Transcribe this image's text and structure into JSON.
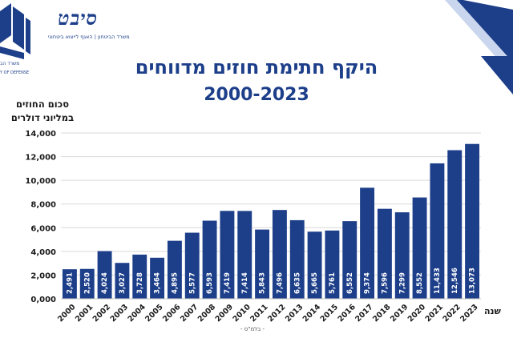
{
  "header": {
    "logo_text": "סיבט",
    "logo_sub": "משרד הביטחון | האגף לייצוא ביטחוני",
    "mod_he": "משרד הב",
    "mod_en": "Y OF DEFENSE"
  },
  "colors": {
    "bar": "#1d3f8a",
    "accent": "#1d3f8a",
    "title": "#1d3f8a",
    "grid": "#d9d9d9"
  },
  "footer": {
    "source": "- בלמ\"ס -"
  },
  "chart_data": {
    "type": "bar",
    "title": "היקף חתימת חוזים מדווחים",
    "subtitle": "2000-2023",
    "ylabel": "סכום החוזים במליוני דולרים",
    "xlabel": "שנה",
    "categories": [
      "2000",
      "2001",
      "2002",
      "2003",
      "2004",
      "2005",
      "2006",
      "2007",
      "2008",
      "2009",
      "2010",
      "2011",
      "2012",
      "2013",
      "2014",
      "2015",
      "2016",
      "2017",
      "2018",
      "2019",
      "2020",
      "2021",
      "2022",
      "2023"
    ],
    "values": [
      2491,
      2520,
      4024,
      3027,
      3728,
      3464,
      4895,
      5577,
      6593,
      7419,
      7414,
      5843,
      7496,
      6635,
      5665,
      5761,
      6552,
      9374,
      7596,
      7299,
      8552,
      11433,
      12546,
      13073
    ],
    "value_labels": [
      "2,491",
      "2,520",
      "4,024",
      "3,027",
      "3,728",
      "3,464",
      "4,895",
      "5,577",
      "6,593",
      "7,419",
      "7,414",
      "5,843",
      "7,496",
      "6,635",
      "5,665",
      "5,761",
      "6,552",
      "9,374",
      "7,596",
      "7,299",
      "8,552",
      "11,433",
      "12,546",
      "13,073"
    ],
    "ylim": [
      0,
      14000
    ],
    "yticks": [
      0,
      2000,
      4000,
      6000,
      8000,
      10000,
      12000,
      14000
    ],
    "ytick_labels": [
      "0,000",
      "2,000",
      "4,000",
      "6,000",
      "8,000",
      "10,000",
      "12,000",
      "14,000"
    ],
    "grid": true
  }
}
